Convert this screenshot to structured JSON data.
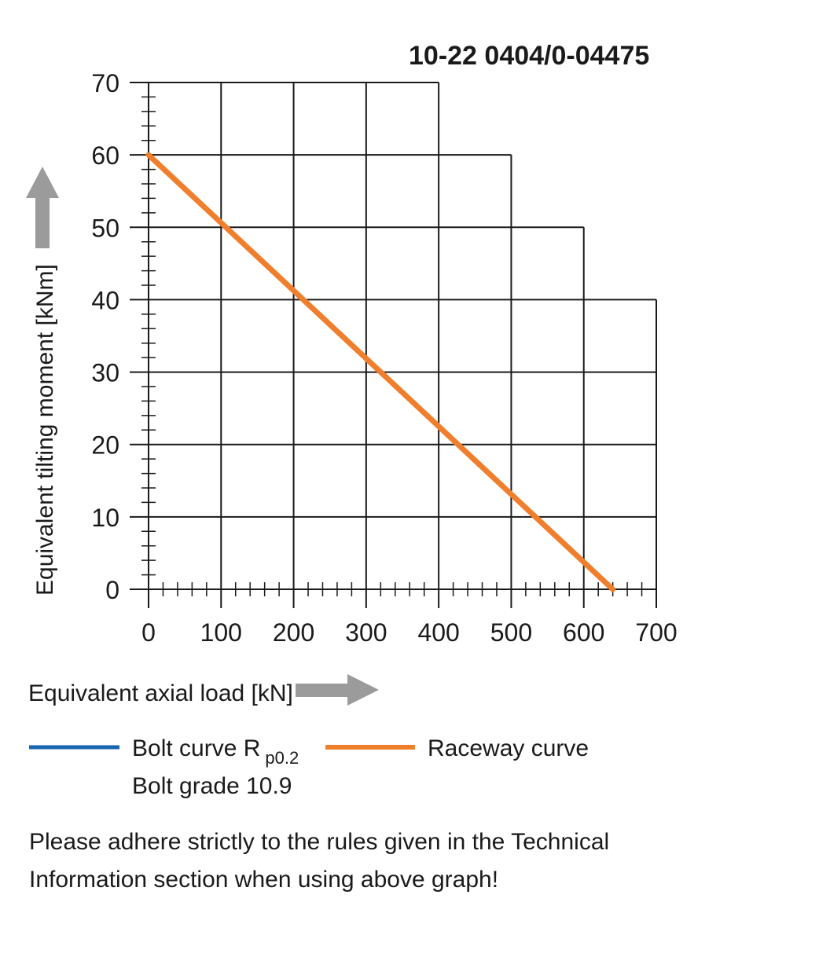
{
  "chart_data": {
    "type": "line",
    "title": "10-22 0404/0-04475",
    "xlabel": "Equivalent axial load [kN]",
    "ylabel": "Equivalent tilting moment [kNm]",
    "xlim": [
      0,
      700
    ],
    "ylim": [
      0,
      70
    ],
    "x_ticks": [
      "0",
      "100",
      "200",
      "300",
      "400",
      "500",
      "600",
      "700"
    ],
    "y_ticks": [
      "0",
      "10",
      "20",
      "30",
      "40",
      "50",
      "60",
      "70"
    ],
    "grid_row_extents": [
      {
        "y_from": 0,
        "y_to": 40,
        "x_max": 700
      },
      {
        "y_from": 40,
        "y_to": 50,
        "x_max": 600
      },
      {
        "y_from": 50,
        "y_to": 60,
        "x_max": 500
      },
      {
        "y_from": 60,
        "y_to": 70,
        "x_max": 400
      }
    ],
    "series": [
      {
        "name": "Raceway curve",
        "color": "#f07f2d",
        "x": [
          0,
          640
        ],
        "y": [
          60,
          0
        ]
      }
    ],
    "legend": [
      {
        "label": "Bolt curve  R",
        "subscript": "p0.2",
        "second_line": "Bolt grade 10.9",
        "color": "#1565b0"
      },
      {
        "label": "Raceway curve",
        "color": "#f07f2d"
      }
    ],
    "arrow_color": "#9b9b9b"
  },
  "note": {
    "line1": "Please adhere strictly to the rules given in the Technical",
    "line2": "Information section when using above graph!"
  }
}
